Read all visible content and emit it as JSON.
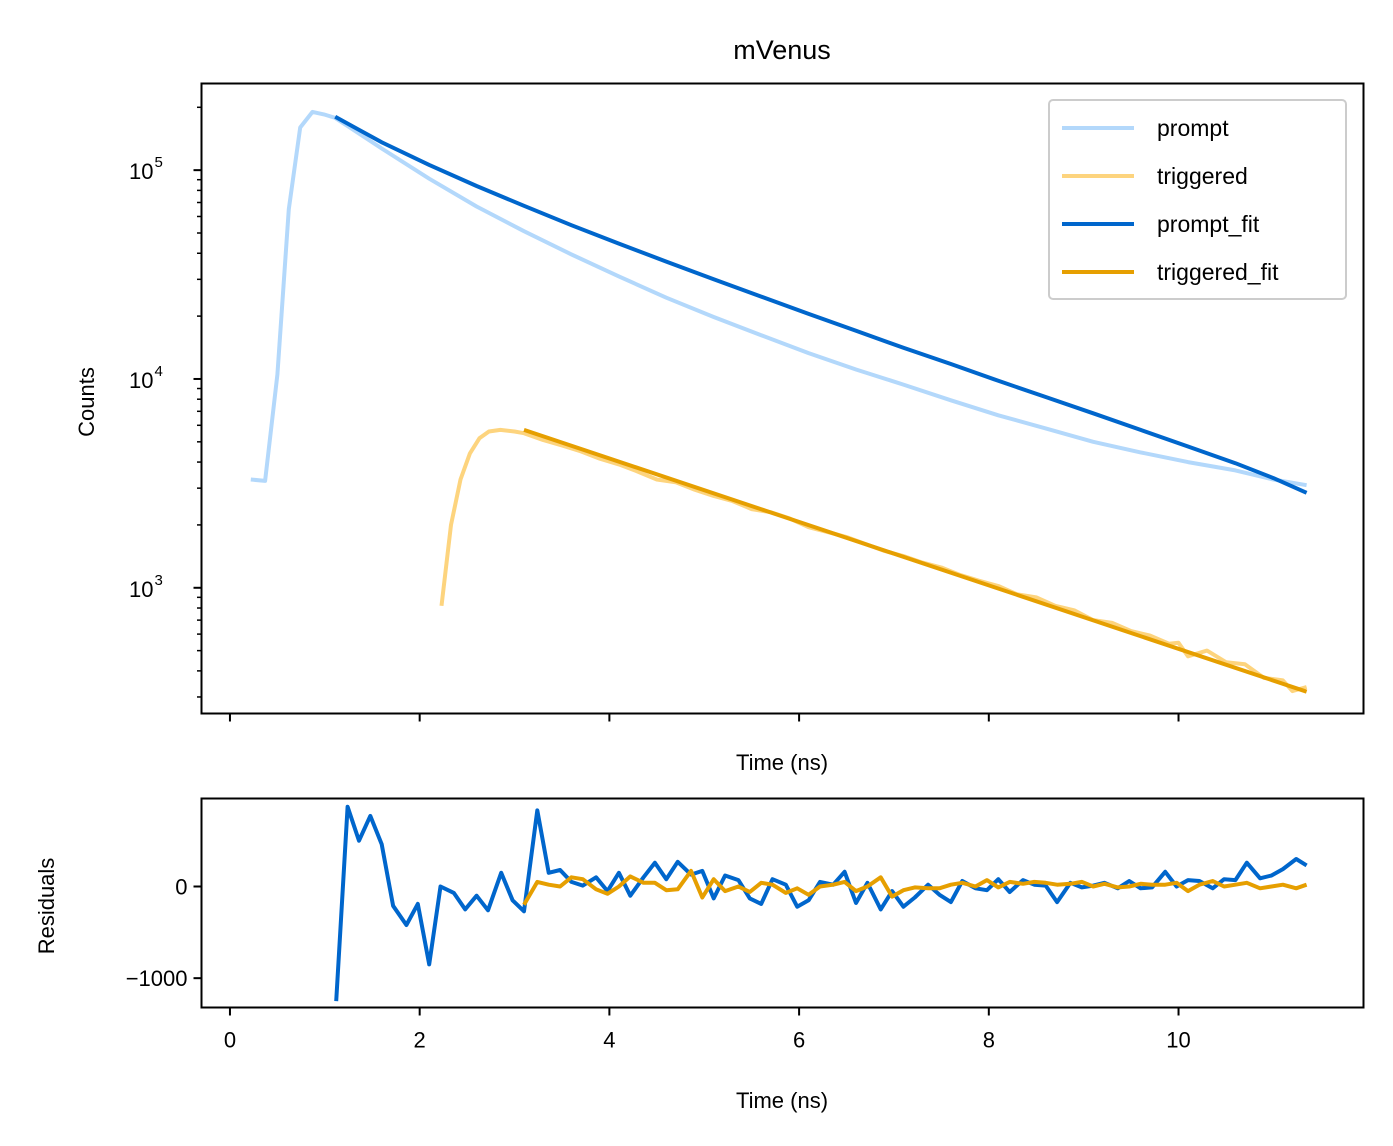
{
  "chart_data": [
    {
      "type": "line",
      "title": "mVenus",
      "xlabel": "Time (ns)",
      "ylabel": "Counts",
      "yscale": "log",
      "xlim": [
        -0.3,
        11.95
      ],
      "ylim": [
        250,
        260000
      ],
      "y_ticks": [
        {
          "value": 1000,
          "label": "10",
          "exp": "3"
        },
        {
          "value": 10000,
          "label": "10",
          "exp": "4"
        },
        {
          "value": 100000,
          "label": "10",
          "exp": "5"
        }
      ],
      "x_ticks": [
        0,
        2,
        4,
        6,
        8,
        10
      ],
      "x_ticklabels_shown": false,
      "grid": false,
      "legend": "top-right",
      "series": [
        {
          "name": "prompt",
          "color": "#b3d8fb",
          "x": [
            0.22,
            0.37,
            0.5,
            0.62,
            0.74,
            0.87,
            0.99,
            1.11,
            1.6,
            2.1,
            2.6,
            3.1,
            3.6,
            4.1,
            4.6,
            5.1,
            5.6,
            6.1,
            6.6,
            7.1,
            7.6,
            8.1,
            8.6,
            9.1,
            9.6,
            10.1,
            10.6,
            11.0,
            11.35
          ],
          "y": [
            3300,
            3250,
            10500,
            65000,
            160000,
            190000,
            185000,
            178000,
            127000,
            91000,
            67000,
            51000,
            39500,
            31000,
            24500,
            19800,
            16200,
            13300,
            11100,
            9400,
            7900,
            6700,
            5800,
            5000,
            4450,
            4000,
            3650,
            3300,
            3100
          ]
        },
        {
          "name": "triggered",
          "color": "#fdd47e",
          "x": [
            2.23,
            2.33,
            2.43,
            2.53,
            2.63,
            2.73,
            2.85,
            3.0,
            3.1,
            3.3,
            3.5,
            3.7,
            3.9,
            4.1,
            4.3,
            4.5,
            4.7,
            4.9,
            5.1,
            5.3,
            5.5,
            5.7,
            5.9,
            6.1,
            6.3,
            6.5,
            6.7,
            6.9,
            7.1,
            7.3,
            7.5,
            7.7,
            7.9,
            8.1,
            8.3,
            8.5,
            8.7,
            8.9,
            9.1,
            9.3,
            9.5,
            9.7,
            9.9,
            10.0,
            10.1,
            10.3,
            10.5,
            10.7,
            10.9,
            11.1,
            11.2,
            11.35
          ],
          "y": [
            820,
            2000,
            3300,
            4400,
            5200,
            5600,
            5700,
            5600,
            5500,
            5100,
            4800,
            4500,
            4150,
            3900,
            3600,
            3300,
            3200,
            2950,
            2750,
            2600,
            2380,
            2300,
            2150,
            1950,
            1850,
            1750,
            1620,
            1500,
            1420,
            1320,
            1250,
            1150,
            1080,
            1020,
            930,
            900,
            820,
            780,
            700,
            680,
            620,
            590,
            540,
            545,
            470,
            500,
            440,
            430,
            370,
            360,
            320,
            335
          ]
        },
        {
          "name": "prompt_fit",
          "color": "#0066cc",
          "x": [
            1.11,
            1.6,
            2.1,
            2.6,
            3.1,
            3.6,
            4.1,
            4.6,
            5.1,
            5.6,
            6.1,
            6.6,
            7.1,
            7.6,
            8.1,
            8.6,
            9.1,
            9.6,
            10.1,
            10.6,
            11.0,
            11.35
          ],
          "y": [
            180000,
            136000,
            106000,
            84000,
            67500,
            54500,
            44500,
            36500,
            30000,
            24800,
            20500,
            17000,
            14100,
            11800,
            9800,
            8200,
            6850,
            5700,
            4750,
            3950,
            3350,
            2850
          ]
        },
        {
          "name": "triggered_fit",
          "color": "#e69f00",
          "x": [
            3.1,
            11.35
          ],
          "y": [
            5700,
            318
          ]
        }
      ]
    },
    {
      "type": "line",
      "title": "",
      "xlabel": "Time (ns)",
      "ylabel": "Residuals",
      "xlim": [
        -0.3,
        11.95
      ],
      "ylim": [
        -1320,
        960
      ],
      "y_ticks": [
        {
          "value": 0,
          "label": "0"
        },
        {
          "value": -1000,
          "label": "−1000"
        }
      ],
      "x_ticks": [
        {
          "value": 0,
          "label": "0"
        },
        {
          "value": 2,
          "label": "2"
        },
        {
          "value": 4,
          "label": "4"
        },
        {
          "value": 6,
          "label": "6"
        },
        {
          "value": 8,
          "label": "8"
        },
        {
          "value": 10,
          "label": "10"
        }
      ],
      "grid": false,
      "series": [
        {
          "color": "#0066cc",
          "x": [
            1.12,
            1.24,
            1.36,
            1.48,
            1.6,
            1.72,
            1.86,
            1.98,
            2.1,
            2.22,
            2.36,
            2.48,
            2.6,
            2.72,
            2.86,
            2.98,
            3.1,
            3.24,
            3.36,
            3.48,
            3.6,
            3.72,
            3.86,
            3.98,
            4.1,
            4.22,
            4.36,
            4.48,
            4.6,
            4.72,
            4.86,
            4.98,
            5.1,
            5.22,
            5.36,
            5.48,
            5.6,
            5.72,
            5.86,
            5.98,
            6.1,
            6.22,
            6.36,
            6.48,
            6.6,
            6.72,
            6.86,
            6.98,
            7.1,
            7.22,
            7.36,
            7.48,
            7.6,
            7.72,
            7.86,
            7.98,
            8.1,
            8.22,
            8.36,
            8.48,
            8.6,
            8.72,
            8.86,
            8.98,
            9.1,
            9.22,
            9.36,
            9.48,
            9.6,
            9.72,
            9.86,
            9.98,
            10.1,
            10.22,
            10.36,
            10.48,
            10.6,
            10.72,
            10.86,
            10.98,
            11.1,
            11.24,
            11.35
          ],
          "y": [
            -1250,
            870,
            500,
            770,
            460,
            -210,
            -420,
            -190,
            -850,
            0,
            -70,
            -250,
            -100,
            -260,
            150,
            -150,
            -270,
            830,
            150,
            180,
            50,
            10,
            100,
            -50,
            150,
            -100,
            100,
            260,
            80,
            270,
            130,
            170,
            -130,
            120,
            70,
            -130,
            -190,
            80,
            20,
            -220,
            -150,
            50,
            20,
            160,
            -180,
            40,
            -250,
            -50,
            -220,
            -120,
            20,
            -90,
            -170,
            60,
            -20,
            -40,
            80,
            -60,
            70,
            20,
            10,
            -170,
            40,
            -10,
            10,
            40,
            -20,
            60,
            -20,
            -10,
            160,
            0,
            70,
            60,
            -20,
            80,
            70,
            260,
            90,
            120,
            190,
            300,
            230
          ]
        },
        {
          "color": "#e69f00",
          "x": [
            3.1,
            3.24,
            3.36,
            3.48,
            3.6,
            3.72,
            3.86,
            3.98,
            4.1,
            4.22,
            4.36,
            4.48,
            4.6,
            4.72,
            4.86,
            4.98,
            5.1,
            5.22,
            5.36,
            5.48,
            5.6,
            5.72,
            5.86,
            5.98,
            6.1,
            6.22,
            6.36,
            6.48,
            6.6,
            6.72,
            6.86,
            6.98,
            7.1,
            7.22,
            7.36,
            7.48,
            7.6,
            7.72,
            7.86,
            7.98,
            8.1,
            8.22,
            8.36,
            8.48,
            8.6,
            8.72,
            8.86,
            8.98,
            9.1,
            9.22,
            9.36,
            9.48,
            9.6,
            9.72,
            9.86,
            9.98,
            10.1,
            10.22,
            10.36,
            10.48,
            10.6,
            10.72,
            10.86,
            10.98,
            11.1,
            11.24,
            11.35
          ],
          "y": [
            -200,
            50,
            20,
            0,
            100,
            80,
            -30,
            -80,
            0,
            110,
            40,
            40,
            -40,
            -30,
            170,
            -120,
            80,
            -50,
            0,
            -60,
            40,
            20,
            -70,
            -20,
            -90,
            0,
            20,
            50,
            -50,
            0,
            100,
            -110,
            -40,
            -10,
            -20,
            -20,
            20,
            40,
            0,
            70,
            -10,
            50,
            30,
            50,
            40,
            20,
            30,
            50,
            0,
            30,
            -10,
            0,
            30,
            20,
            20,
            40,
            -50,
            20,
            60,
            0,
            20,
            40,
            -20,
            0,
            20,
            -20,
            20
          ]
        }
      ]
    }
  ]
}
